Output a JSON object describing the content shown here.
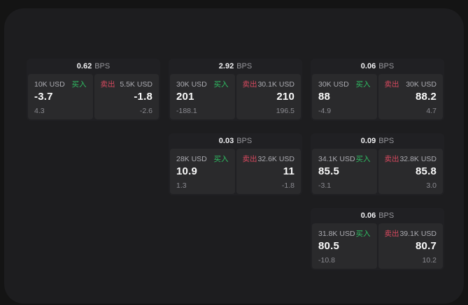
{
  "labels": {
    "bps_suffix": "BPS",
    "buy": "买入",
    "sell": "卖出"
  },
  "colors": {
    "buy_green": "#2fbe63",
    "sell_red": "#d8495f",
    "panel_bg": "#1d1d1f",
    "card_bg": "#202023",
    "tile_bg": "#2a2a2c"
  },
  "cards": [
    {
      "row": 1,
      "col": 1,
      "bps": "0.62",
      "buy": {
        "size": "10K USD",
        "value": "-3.7",
        "delta": "4.3"
      },
      "sell": {
        "size": "5.5K USD",
        "value": "-1.8",
        "delta": "-2.6"
      }
    },
    {
      "row": 1,
      "col": 2,
      "bps": "2.92",
      "buy": {
        "size": "30K USD",
        "value": "201",
        "delta": "-188.1"
      },
      "sell": {
        "size": "30.1K USD",
        "value": "210",
        "delta": "196.5"
      }
    },
    {
      "row": 1,
      "col": 3,
      "bps": "0.06",
      "buy": {
        "size": "30K USD",
        "value": "88",
        "delta": "-4.9"
      },
      "sell": {
        "size": "30K USD",
        "value": "88.2",
        "delta": "4.7"
      }
    },
    {
      "row": 2,
      "col": 2,
      "bps": "0.03",
      "buy": {
        "size": "28K USD",
        "value": "10.9",
        "delta": "1.3"
      },
      "sell": {
        "size": "32.6K USD",
        "value": "11",
        "delta": "-1.8"
      }
    },
    {
      "row": 2,
      "col": 3,
      "bps": "0.09",
      "buy": {
        "size": "34.1K USD",
        "value": "85.5",
        "delta": "-3.1"
      },
      "sell": {
        "size": "32.8K USD",
        "value": "85.8",
        "delta": "3.0"
      }
    },
    {
      "row": 3,
      "col": 3,
      "bps": "0.06",
      "buy": {
        "size": "31.8K USD",
        "value": "80.5",
        "delta": "-10.8"
      },
      "sell": {
        "size": "39.1K USD",
        "value": "80.7",
        "delta": "10.2"
      }
    }
  ]
}
